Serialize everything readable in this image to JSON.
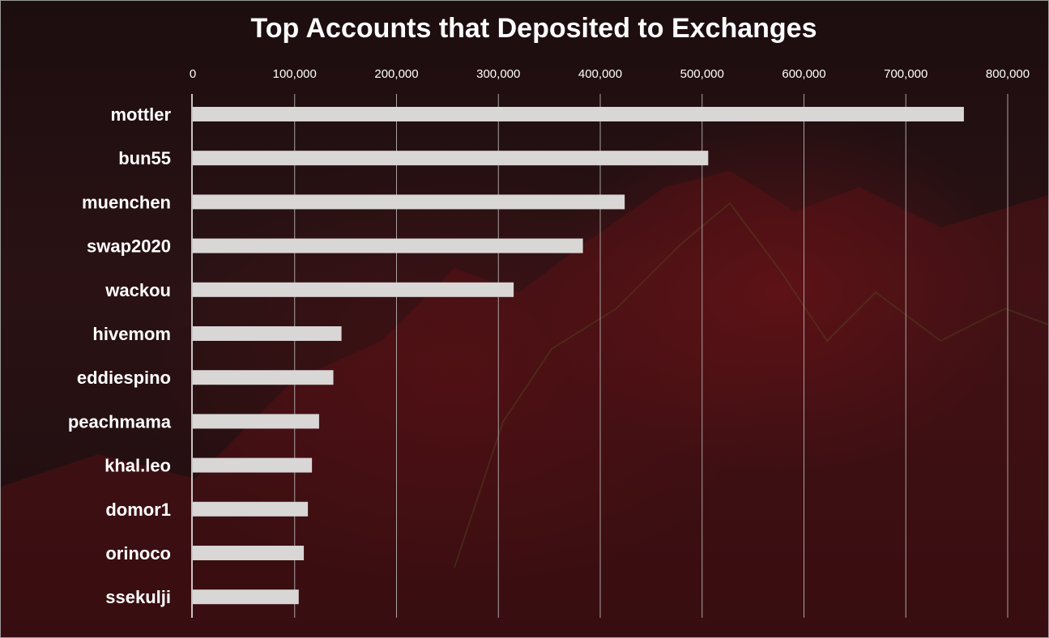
{
  "chart_data": {
    "type": "bar",
    "orientation": "horizontal",
    "title": "Top Accounts that Deposited to Exchanges",
    "xlabel": "",
    "ylabel": "",
    "xlim": [
      0,
      800000
    ],
    "x_ticks": [
      0,
      100000,
      200000,
      300000,
      400000,
      500000,
      600000,
      700000,
      800000
    ],
    "x_tick_labels": [
      "0",
      "100,000",
      "200,000",
      "300,000",
      "400,000",
      "500,000",
      "600,000",
      "700,000",
      "800,000"
    ],
    "x_axis_position": "top",
    "grid": "vertical",
    "legend": "none",
    "categories": [
      "mottler",
      "bun55",
      "muenchen",
      "swap2020",
      "wackou",
      "hivemom",
      "eddiespino",
      "peachmama",
      "khal.leo",
      "domor1",
      "orinoco",
      "ssekulji"
    ],
    "values": [
      757000,
      506000,
      424000,
      383000,
      315000,
      146000,
      138000,
      124000,
      117000,
      113000,
      109000,
      104000
    ],
    "colors": {
      "bar": "#d9d6d6",
      "text": "#ffffff",
      "grid": "#a9a2a2",
      "axis": "#ffffff"
    }
  }
}
